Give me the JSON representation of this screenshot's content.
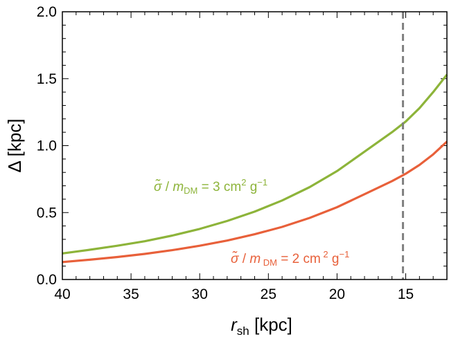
{
  "chart_data": {
    "type": "line",
    "title": "",
    "xlabel": {
      "var": "r",
      "sub": "sh",
      "unit": " [kpc]"
    },
    "ylabel": "Δ  [kpc]",
    "xlim": [
      40,
      12
    ],
    "ylim": [
      0.0,
      2.0
    ],
    "x_reversed": true,
    "grid": false,
    "x_ticks": [
      {
        "v": 40,
        "label": "40"
      },
      {
        "v": 35,
        "label": "35"
      },
      {
        "v": 30,
        "label": "30"
      },
      {
        "v": 25,
        "label": "25"
      },
      {
        "v": 20,
        "label": "20"
      },
      {
        "v": 15,
        "label": "15"
      }
    ],
    "y_ticks": [
      {
        "v": 0.0,
        "label": "0.0"
      },
      {
        "v": 0.5,
        "label": "0.5"
      },
      {
        "v": 1.0,
        "label": "1.0"
      },
      {
        "v": 1.5,
        "label": "1.5"
      },
      {
        "v": 2.0,
        "label": "2.0"
      }
    ],
    "series": [
      {
        "name": "σ̃ / m_DM = 3 cm² g⁻¹",
        "color": "#8db43a",
        "x": [
          40,
          38,
          36,
          34,
          32,
          30,
          28,
          26,
          24,
          22,
          20,
          18,
          16,
          15,
          14,
          13,
          12
        ],
        "y": [
          0.195,
          0.222,
          0.252,
          0.286,
          0.328,
          0.378,
          0.437,
          0.507,
          0.59,
          0.69,
          0.81,
          0.955,
          1.1,
          1.18,
          1.28,
          1.4,
          1.53
        ]
      },
      {
        "name": "σ̃ / m_DM = 2 cm² g⁻¹",
        "color": "#e8603a",
        "x": [
          40,
          38,
          36,
          34,
          32,
          30,
          28,
          26,
          24,
          22,
          20,
          18,
          16,
          15,
          14,
          13,
          12
        ],
        "y": [
          0.13,
          0.148,
          0.168,
          0.191,
          0.219,
          0.252,
          0.291,
          0.338,
          0.393,
          0.46,
          0.54,
          0.637,
          0.735,
          0.79,
          0.856,
          0.935,
          1.03
        ]
      }
    ],
    "vline": {
      "x": 15.2,
      "color": "#808080",
      "style": "dashed"
    },
    "annotations": [
      {
        "series": 0,
        "parts": {
          "sym": "σ̃",
          "slash": " / ",
          "m": "m",
          "sub": "DM",
          "eq": " = 3 cm",
          "sup1": "2",
          "g": " g",
          "sup2": "−1"
        }
      },
      {
        "series": 1,
        "parts": {
          "sym": "σ̃",
          "slash": " / ",
          "m": "m",
          "sub": " DM",
          "eq": " = 2 cm",
          "sup1": " 2",
          "g": " g",
          "sup2": "−1"
        }
      }
    ]
  }
}
